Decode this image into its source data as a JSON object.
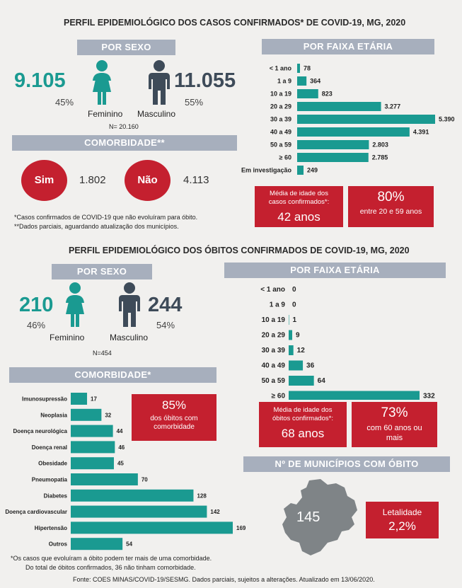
{
  "colors": {
    "teal": "#1a9a91",
    "red": "#c4202f",
    "header": "#a7afbd",
    "dark": "#3e4b59"
  },
  "cases": {
    "title": "PERFIL EPIDEMIOLÓGICO DOS CASOS CONFIRMADOS* DE COVID-19, MG, 2020",
    "sex_header": "POR SEXO",
    "female_count": "9.105",
    "female_pct": "45%",
    "female_label": "Feminino",
    "male_count": "11.055",
    "male_pct": "55%",
    "male_label": "Masculino",
    "total": "N= 20.160",
    "comorb_header": "COMORBIDADE**",
    "yes_label": "Sim",
    "yes_value": "1.802",
    "no_label": "Não",
    "no_value": "4.113",
    "note1": "*Casos confirmados de COVID-19 que não evoluíram para óbito.",
    "note2": "**Dados parciais, aguardando atualização dos municípios.",
    "age_header": "POR FAIXA ETÁRIA",
    "avg_age_label": "Média de idade dos casos confirmados*:",
    "avg_age_value": "42 anos",
    "pct_box_value": "80%",
    "pct_box_label": "entre 20 e 59 anos"
  },
  "deaths": {
    "title": "PERFIL EPIDEMIOLÓGICO DOS ÓBITOS CONFIRMADOS DE COVID-19, MG, 2020",
    "sex_header": "POR SEXO",
    "female_count": "210",
    "female_pct": "46%",
    "female_label": "Feminino",
    "male_count": "244",
    "male_pct": "54%",
    "male_label": "Masculino",
    "total": "N=454",
    "comorb_header": "COMORBIDADE*",
    "comorb_box_value": "85%",
    "comorb_box_label": "dos óbitos com comorbidade",
    "age_header": "POR FAIXA ETÁRIA",
    "avg_age_label": "Média de idade dos óbitos confirmados*:",
    "avg_age_value": "68 anos",
    "pct_box_value": "73%",
    "pct_box_label": "com 60 anos ou mais",
    "mun_header": "Nº DE MUNICÍPIOS COM ÓBITO",
    "mun_value": "145",
    "lethality_label": "Letalidade",
    "lethality_value": "2,2%",
    "note1": "*Os casos que evoluíram a óbito podem ter mais de uma comorbidade.",
    "note2": "Do total de óbitos confirmados, 36 não tinham comorbidade."
  },
  "footer": "Fonte: COES MINAS/COVID-19/SESMG. Dados parciais, sujeitos a alterações. Atualizado em 13/06/2020.",
  "chart_data": [
    {
      "type": "bar",
      "orientation": "horizontal",
      "categories": [
        "< 1 ano",
        "1 a 9",
        "10 a 19",
        "20 a 29",
        "30 a 39",
        "40 a 49",
        "50 a 59",
        "≥ 60",
        "Em investigação"
      ],
      "values": [
        78,
        364,
        823,
        3277,
        5390,
        4391,
        2803,
        2785,
        249
      ],
      "labels": [
        "78",
        "364",
        "823",
        "3.277",
        "5.390",
        "4.391",
        "2.803",
        "2.785",
        "249"
      ]
    },
    {
      "type": "bar",
      "orientation": "horizontal",
      "categories": [
        "< 1 ano",
        "1 a 9",
        "10 a 19",
        "20 a 29",
        "30 a 39",
        "40 a 49",
        "50 a 59",
        "≥ 60"
      ],
      "values": [
        0,
        0,
        1,
        9,
        12,
        36,
        64,
        332
      ],
      "labels": [
        "0",
        "0",
        "1",
        "9",
        "12",
        "36",
        "64",
        "332"
      ]
    },
    {
      "type": "bar",
      "orientation": "horizontal",
      "categories": [
        "Imunosupressão",
        "Neoplasia",
        "Doença neurológica",
        "Doença renal",
        "Obesidade",
        "Pneumopatia",
        "Diabetes",
        "Doença cardiovascular",
        "Hipertensão",
        "Outros"
      ],
      "values": [
        17,
        32,
        44,
        46,
        45,
        70,
        128,
        142,
        169,
        54
      ],
      "labels": [
        "17",
        "32",
        "44",
        "46",
        "45",
        "70",
        "128",
        "142",
        "169",
        "54"
      ]
    }
  ]
}
